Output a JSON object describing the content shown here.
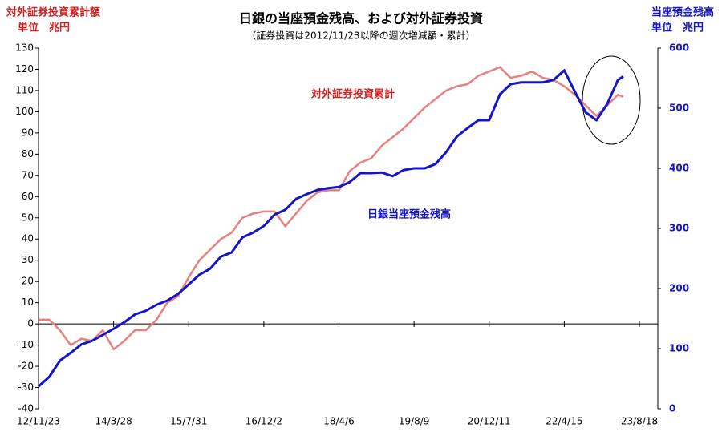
{
  "chart_data": {
    "type": "line",
    "title": "日銀の当座預金残高、および対外証券投資",
    "subtitle": "（証券投資は2012/11/23以降の週次増減額・累計）",
    "ylabel": [
      "対外証券投資累計額",
      "単位　兆円"
    ],
    "y2label": [
      "当座預金残高",
      "単位　兆円"
    ],
    "x": [
      0,
      10,
      20,
      30,
      40,
      50,
      60,
      70,
      80,
      90,
      100,
      110,
      120,
      130,
      140,
      150,
      160,
      170,
      180,
      190,
      200,
      210,
      220,
      230,
      240,
      250,
      260,
      270,
      280,
      290,
      300,
      310,
      320,
      330,
      340,
      350,
      360,
      370,
      380,
      390,
      400,
      410,
      420,
      430,
      440,
      450,
      460,
      470,
      480,
      490,
      500,
      510,
      520,
      530,
      540,
      545
    ],
    "xlim": [
      0,
      560
    ],
    "xticks": [
      {
        "value": 0,
        "label": "12/11/23"
      },
      {
        "value": 70,
        "label": "14/3/28"
      },
      {
        "value": 140,
        "label": "15/7/31"
      },
      {
        "value": 210,
        "label": "16/12/2"
      },
      {
        "value": 280,
        "label": "18/4/6"
      },
      {
        "value": 350,
        "label": "19/8/9"
      },
      {
        "value": 420,
        "label": "20/12/11"
      },
      {
        "value": 490,
        "label": "22/4/15"
      },
      {
        "value": 560,
        "label": "23/8/18"
      }
    ],
    "ylim": [
      -40,
      130
    ],
    "yticks": [
      -40,
      -30,
      -20,
      -10,
      0,
      10,
      20,
      30,
      40,
      50,
      60,
      70,
      80,
      90,
      100,
      110,
      120,
      130
    ],
    "y2lim": [
      0,
      600
    ],
    "y2ticks": [
      0,
      100,
      200,
      300,
      400,
      500,
      600
    ],
    "series": [
      {
        "name": "対外証券投資累計",
        "color": "#e88080",
        "values": [
          2,
          2,
          -3,
          -10,
          -7,
          -8,
          -3,
          -12,
          -8,
          -3,
          -3,
          2,
          10,
          13,
          22,
          30,
          35,
          40,
          43,
          50,
          52,
          53,
          53,
          46,
          52,
          58,
          62,
          63,
          63,
          72,
          76,
          78,
          84,
          88,
          92,
          97,
          102,
          106,
          110,
          112,
          113,
          117,
          119,
          121,
          116,
          117,
          119,
          116,
          115,
          112,
          108,
          103,
          98,
          103,
          108,
          107
        ]
      },
      {
        "name": "日銀当座預金残高",
        "color": "#1414c8",
        "axis": "y2",
        "values": [
          37,
          53,
          80,
          93,
          107,
          113,
          123,
          133,
          144,
          157,
          163,
          173,
          180,
          191,
          207,
          223,
          233,
          253,
          260,
          285,
          293,
          304,
          323,
          331,
          349,
          357,
          364,
          367,
          369,
          377,
          392,
          392,
          393,
          387,
          397,
          400,
          400,
          407,
          427,
          453,
          467,
          480,
          480,
          523,
          540,
          543,
          543,
          543,
          547,
          563,
          527,
          493,
          480,
          507,
          547,
          553
        ]
      }
    ]
  }
}
